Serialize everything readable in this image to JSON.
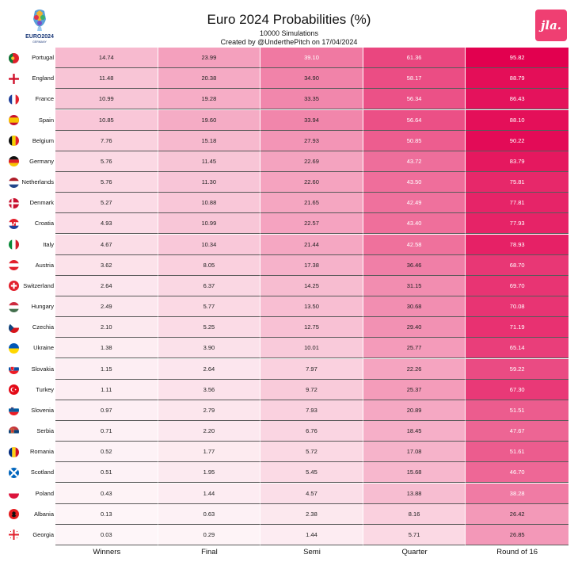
{
  "header": {
    "title": "Euro 2024 Probabilities (%)",
    "subtitle": "10000 Simulations",
    "credit": "Created by @UnderthePitch on 17/04/2024",
    "logo_text": "EURO2024",
    "logo_subtext": "GERMANY",
    "brand_badge": "jla."
  },
  "colors": {
    "brand": "#ef3f72",
    "max_cell": "#e2004f",
    "min_cell": "#fef7f9"
  },
  "chart_data": {
    "type": "table",
    "title": "Euro 2024 Probabilities (%)",
    "columns": [
      "Winners",
      "Final",
      "Semi",
      "Quarter",
      "Round of 16"
    ],
    "rows": [
      {
        "team": "Portugal",
        "values": [
          14.74,
          23.99,
          39.1,
          61.36,
          95.82
        ]
      },
      {
        "team": "England",
        "values": [
          11.48,
          20.38,
          34.9,
          58.17,
          88.79
        ]
      },
      {
        "team": "France",
        "values": [
          10.99,
          19.28,
          33.35,
          56.34,
          86.43
        ]
      },
      {
        "team": "Spain",
        "values": [
          10.85,
          19.6,
          33.94,
          56.64,
          88.1
        ]
      },
      {
        "team": "Belgium",
        "values": [
          7.76,
          15.18,
          27.93,
          50.85,
          90.22
        ]
      },
      {
        "team": "Germany",
        "values": [
          5.76,
          11.45,
          22.69,
          43.72,
          83.79
        ]
      },
      {
        "team": "Netherlands",
        "values": [
          5.76,
          11.3,
          22.6,
          43.5,
          75.81
        ]
      },
      {
        "team": "Denmark",
        "values": [
          5.27,
          10.88,
          21.65,
          42.49,
          77.81
        ]
      },
      {
        "team": "Croatia",
        "values": [
          4.93,
          10.99,
          22.57,
          43.4,
          77.93
        ]
      },
      {
        "team": "Italy",
        "values": [
          4.67,
          10.34,
          21.44,
          42.58,
          78.93
        ]
      },
      {
        "team": "Austria",
        "values": [
          3.62,
          8.05,
          17.38,
          36.46,
          68.7
        ]
      },
      {
        "team": "Switzerland",
        "values": [
          2.64,
          6.37,
          14.25,
          31.15,
          69.7
        ]
      },
      {
        "team": "Hungary",
        "values": [
          2.49,
          5.77,
          13.5,
          30.68,
          70.08
        ]
      },
      {
        "team": "Czechia",
        "values": [
          2.1,
          5.25,
          12.75,
          29.4,
          71.19
        ]
      },
      {
        "team": "Ukraine",
        "values": [
          1.38,
          3.9,
          10.01,
          25.77,
          65.14
        ]
      },
      {
        "team": "Slovakia",
        "values": [
          1.15,
          2.64,
          7.97,
          22.26,
          59.22
        ]
      },
      {
        "team": "Turkey",
        "values": [
          1.11,
          3.56,
          9.72,
          25.37,
          67.3
        ]
      },
      {
        "team": "Slovenia",
        "values": [
          0.97,
          2.79,
          7.93,
          20.89,
          51.51
        ]
      },
      {
        "team": "Serbia",
        "values": [
          0.71,
          2.2,
          6.76,
          18.45,
          47.67
        ]
      },
      {
        "team": "Romania",
        "values": [
          0.52,
          1.77,
          5.72,
          17.08,
          51.61
        ]
      },
      {
        "team": "Scotland",
        "values": [
          0.51,
          1.95,
          5.45,
          15.68,
          46.7
        ]
      },
      {
        "team": "Poland",
        "values": [
          0.43,
          1.44,
          4.57,
          13.88,
          38.28
        ]
      },
      {
        "team": "Albania",
        "values": [
          0.13,
          0.63,
          2.38,
          8.16,
          26.42
        ]
      },
      {
        "team": "Georgia",
        "values": [
          0.03,
          0.29,
          1.44,
          5.71,
          26.85
        ]
      }
    ]
  }
}
